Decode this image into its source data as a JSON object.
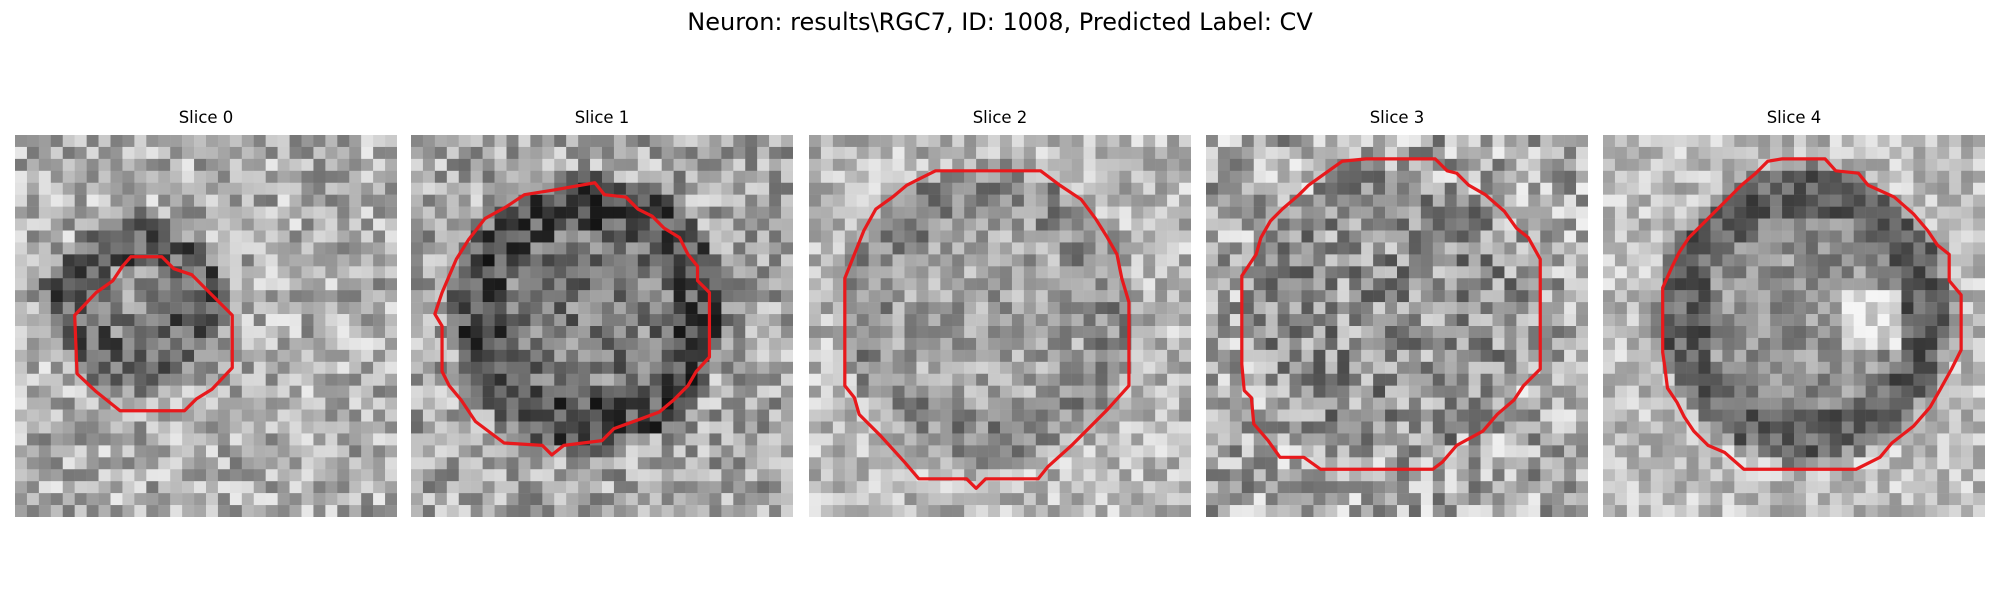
{
  "figure": {
    "title": "Neuron: results\\RGC7, ID: 1008, Predicted Label: CV"
  },
  "panels": [
    {
      "title": "Slice 0"
    },
    {
      "title": "Slice 1"
    },
    {
      "title": "Slice 2"
    },
    {
      "title": "Slice 3"
    },
    {
      "title": "Slice 4"
    }
  ],
  "colors": {
    "contour": "#e8191c",
    "colormap": "grayscale"
  }
}
